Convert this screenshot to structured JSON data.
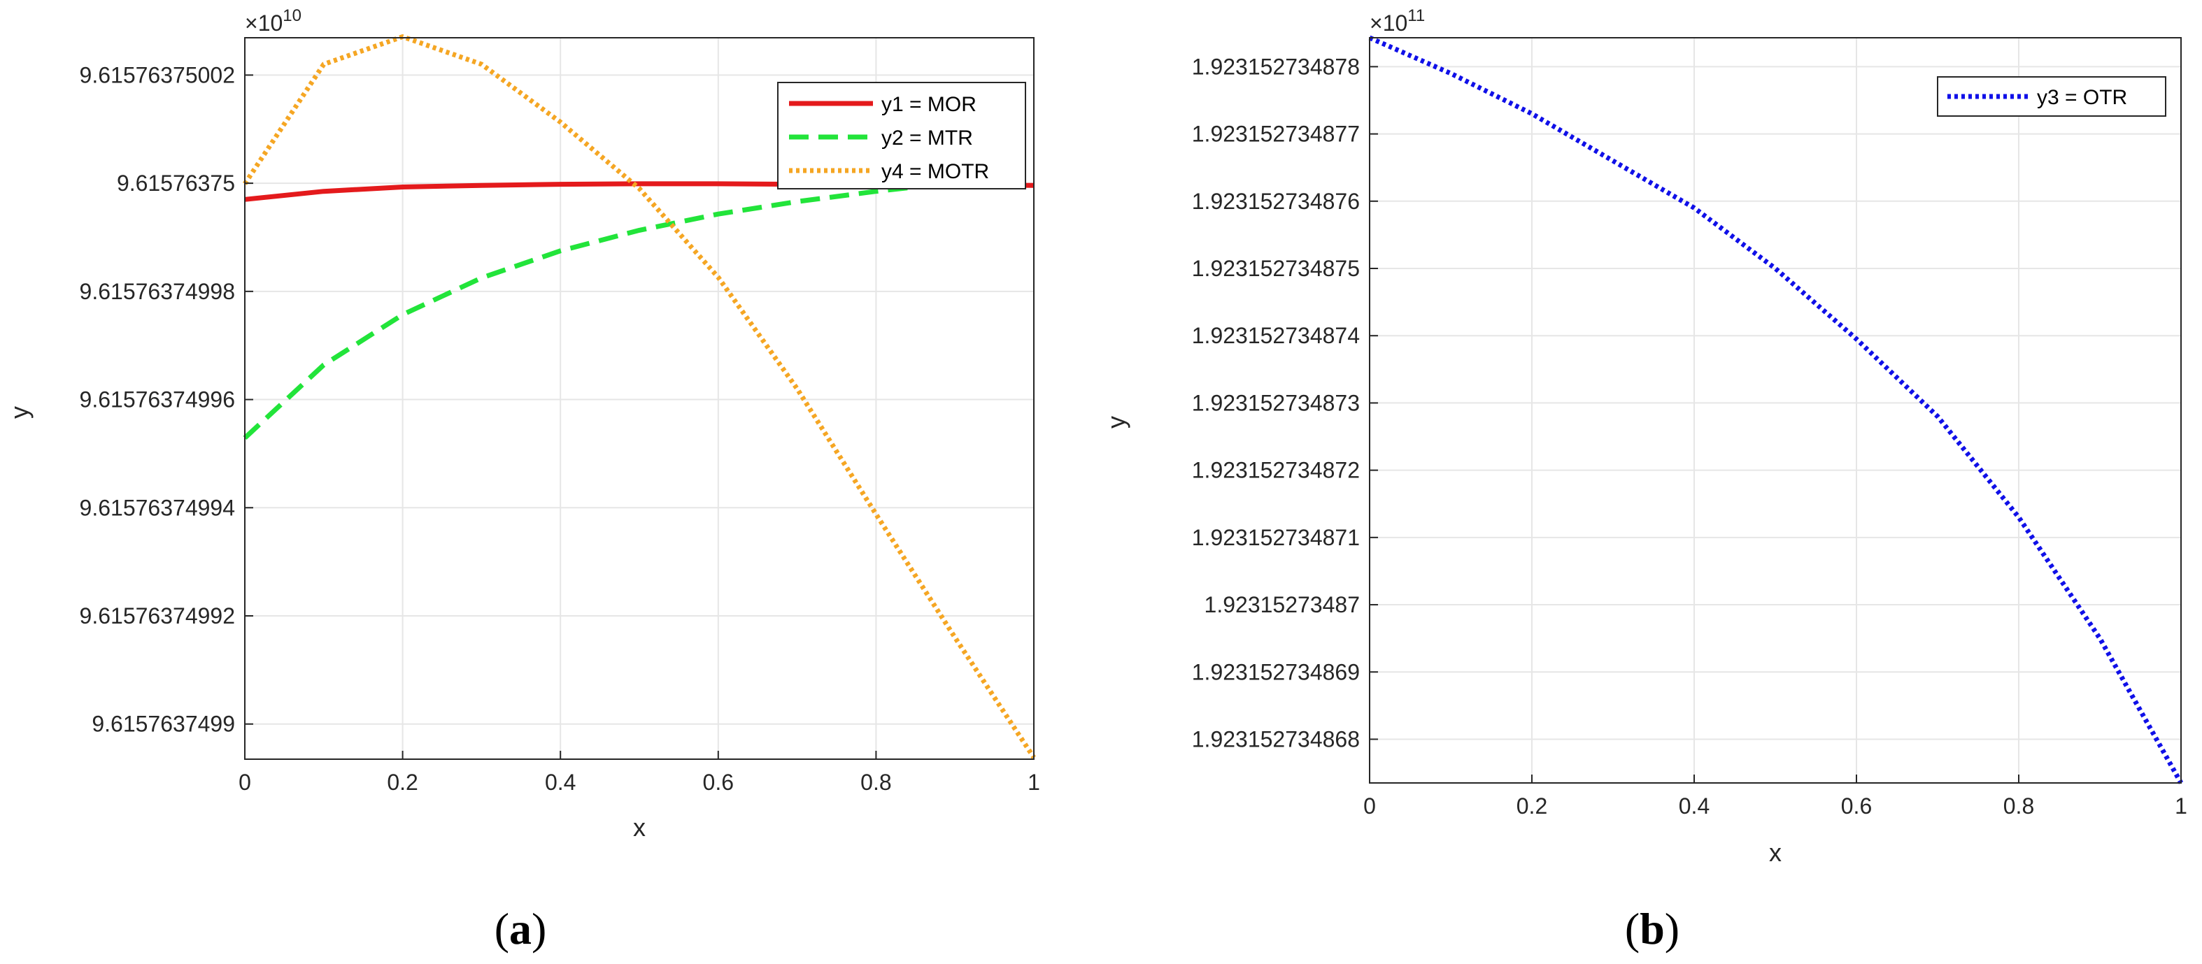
{
  "chart_data": [
    {
      "panel_label": {
        "open": "(",
        "letter": "a",
        "close": ")"
      },
      "type": "line",
      "xlabel": "x",
      "ylabel": "y",
      "exponent_base": "×10",
      "exponent_power": "10",
      "xlim": [
        0,
        1
      ],
      "ylim": [
        9.6157637498935,
        9.6157637500269
      ],
      "x_ticks": [
        0,
        0.2,
        0.4,
        0.6,
        0.8,
        1
      ],
      "x_tick_labels": [
        "0",
        "0.2",
        "0.4",
        "0.6",
        "0.8",
        "1"
      ],
      "y_ticks": [
        9.6157637499,
        9.61576374992,
        9.61576374994,
        9.61576374996,
        9.61576374998,
        9.61576375,
        9.61576375002
      ],
      "y_tick_labels": [
        "9.6157637499",
        "9.61576374992",
        "9.61576374994",
        "9.61576374996",
        "9.61576374998",
        "9.61576375",
        "9.61576375002"
      ],
      "grid": true,
      "legend_position": "top-right",
      "series": [
        {
          "name": "y1 = MOR",
          "color": "#e41a1c",
          "style": "solid",
          "x": [
            0,
            0.1,
            0.2,
            0.3,
            0.4,
            0.5,
            0.6,
            0.7,
            0.8,
            0.9,
            1.0
          ],
          "y": [
            9.615763749997,
            9.6157637499985,
            9.6157637499993,
            9.6157637499996,
            9.6157637499998,
            9.6157637499999,
            9.6157637499999,
            9.6157637499998,
            9.6157637499998,
            9.6157637499997,
            9.6157637499996
          ]
        },
        {
          "name": "y2 = MTR",
          "color": "#22e43a",
          "style": "dashed",
          "x": [
            0,
            0.1,
            0.2,
            0.3,
            0.4,
            0.5,
            0.6,
            0.7,
            0.8,
            0.9,
            1.0
          ],
          "y": [
            9.6157637499529,
            9.6157637499664,
            9.6157637499757,
            9.6157637499825,
            9.6157637499875,
            9.6157637499913,
            9.6157637499943,
            9.6157637499966,
            9.6157637499985,
            9.6157637500001,
            9.6157637500015
          ]
        },
        {
          "name": "y4 = MOTR",
          "color": "#f5a623",
          "style": "dotted",
          "x": [
            0,
            0.1,
            0.2,
            0.3,
            0.4,
            0.5,
            0.6,
            0.7,
            0.8,
            0.9,
            1.0
          ],
          "y": [
            9.6157637499999,
            9.615763750022,
            9.6157637500271,
            9.615763750022,
            9.6157637500113,
            9.615763749999,
            9.6157637499826,
            9.615763749962,
            9.6157637499388,
            9.615763749916,
            9.6157637498938
          ]
        }
      ]
    },
    {
      "panel_label": {
        "open": "(",
        "letter": "b",
        "close": ")"
      },
      "type": "line",
      "xlabel": "x",
      "ylabel": "y",
      "exponent_base": "×10",
      "exponent_power": "11",
      "xlim": [
        0,
        1
      ],
      "ylim": [
        1.92315273486735,
        1.92315273487843
      ],
      "x_ticks": [
        0,
        0.2,
        0.4,
        0.6,
        0.8,
        1
      ],
      "x_tick_labels": [
        "0",
        "0.2",
        "0.4",
        "0.6",
        "0.8",
        "1"
      ],
      "y_ticks": [
        1.923152734868,
        1.923152734869,
        1.92315273487,
        1.923152734871,
        1.923152734872,
        1.923152734873,
        1.923152734874,
        1.923152734875,
        1.923152734876,
        1.923152734877,
        1.923152734878
      ],
      "y_tick_labels": [
        "1.923152734868",
        "1.923152734869",
        "1.92315273487",
        "1.923152734871",
        "1.923152734872",
        "1.923152734873",
        "1.923152734874",
        "1.923152734875",
        "1.923152734876",
        "1.923152734877",
        "1.923152734878"
      ],
      "grid": true,
      "legend_position": "top-right",
      "series": [
        {
          "name": "y3 = OTR",
          "color": "#1010e8",
          "style": "dotted",
          "x": [
            0,
            0.1,
            0.2,
            0.3,
            0.4,
            0.5,
            0.6,
            0.7,
            0.8,
            0.9,
            1.0
          ],
          "y": [
            1.92315273487843,
            1.9231527348779,
            1.9231527348773,
            1.9231527348766,
            1.9231527348759,
            1.923152734875,
            1.92315273487395,
            1.9231527348728,
            1.9231527348713,
            1.9231527348695,
            1.92315273486735
          ]
        }
      ]
    }
  ]
}
